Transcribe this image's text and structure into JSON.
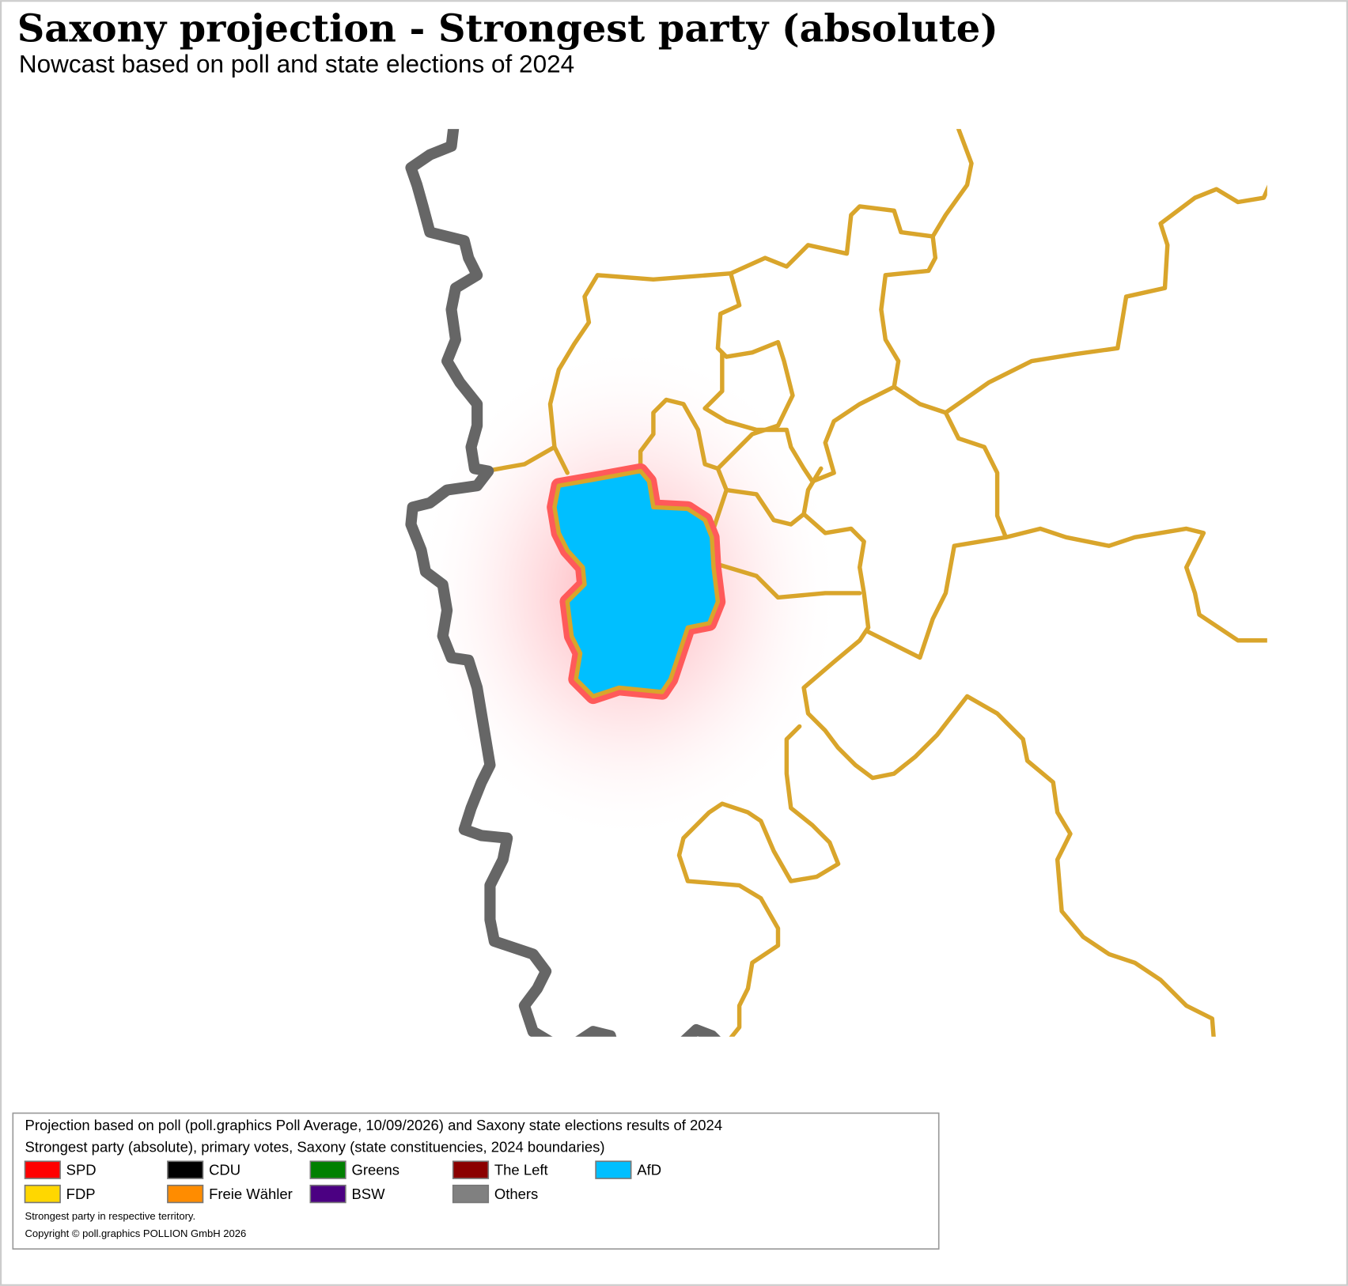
{
  "header": {
    "title": "Saxony projection - Strongest party (absolute)",
    "subtitle": "Nowcast based on poll and state elections of 2024"
  },
  "legend": {
    "lines": [
      "Projection based on poll (poll.graphics Poll Average, 10/09/2026) and Saxony state elections results of 2024",
      "Strongest party (absolute), primary votes, Saxony (state constituencies, 2024 boundaries)"
    ],
    "items": [
      {
        "label": "SPD",
        "color": "#ff0000"
      },
      {
        "label": "CDU",
        "color": "#000000"
      },
      {
        "label": "Greens",
        "color": "#008000"
      },
      {
        "label": "The Left",
        "color": "#8b0000"
      },
      {
        "label": "AfD",
        "color": "#00bfff"
      },
      {
        "label": "FDP",
        "color": "#ffd700"
      },
      {
        "label": "Freie Wähler",
        "color": "#ff8c00"
      },
      {
        "label": "BSW",
        "color": "#4b0082"
      },
      {
        "label": "Others",
        "color": "#808080"
      }
    ],
    "notes": [
      "Strongest party in respective territory.",
      "Copyright © poll.graphics POLLION GmbH 2026"
    ]
  }
}
